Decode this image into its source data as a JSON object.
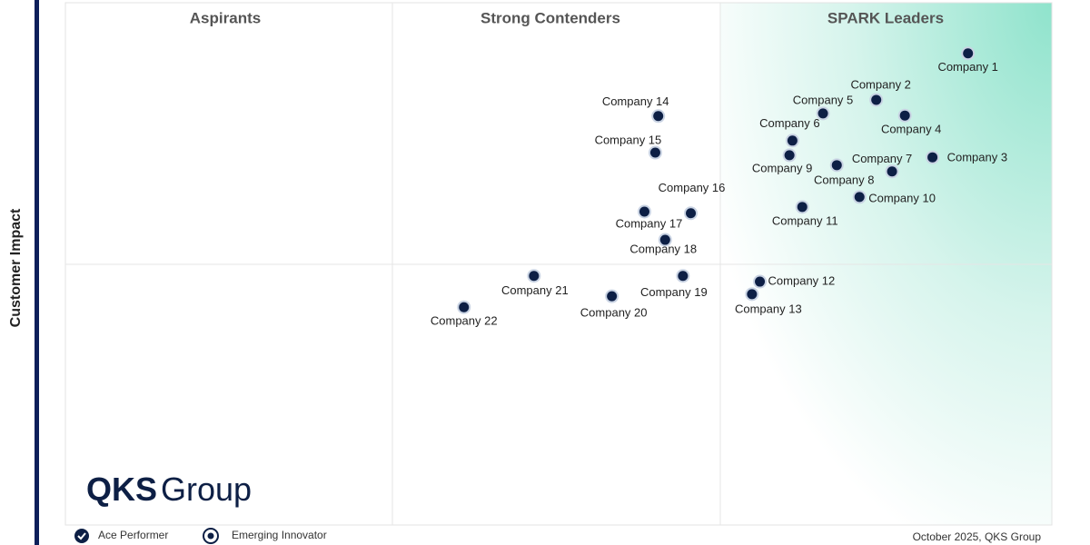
{
  "chart_data": {
    "type": "scatter",
    "quadrants": [
      "Aspirants",
      "Strong Contenders",
      "SPARK Leaders"
    ],
    "y_label": "Customer Impact",
    "color": "#0d1f45",
    "xlim": [
      0,
      100
    ],
    "ylim": [
      0,
      100
    ],
    "labels": [
      "Company 1",
      "Company 2",
      "Company 3",
      "Company 4",
      "Company 5",
      "Company 6",
      "Company 7",
      "Company 8",
      "Company 9",
      "Company 10",
      "Company 11",
      "Company 12",
      "Company 13",
      "Company 14",
      "Company 15",
      "Company 16",
      "Company 17",
      "Company 18",
      "Company 19",
      "Company 20",
      "Company 21",
      "Company 22"
    ],
    "x": [
      91.5,
      82.2,
      87.9,
      85.1,
      76.8,
      73.7,
      83.8,
      78.2,
      73.4,
      80.5,
      74.7,
      70.4,
      69.6,
      60.1,
      59.8,
      63.4,
      58.7,
      60.8,
      62.6,
      55.4,
      47.5,
      40.4
    ],
    "values": [
      90.3,
      81.4,
      70.4,
      78.4,
      78.8,
      73.6,
      67.7,
      68.9,
      70.8,
      62.8,
      60.9,
      46.6,
      44.2,
      78.3,
      71.3,
      59.7,
      60.0,
      54.6,
      47.7,
      43.8,
      47.7,
      41.7
    ],
    "legend": [
      "Ace Performer",
      "Emerging Innovator"
    ],
    "logo": {
      "bold": "QKS",
      "light": "Group"
    },
    "footer": "October 2025, QKS Group"
  }
}
